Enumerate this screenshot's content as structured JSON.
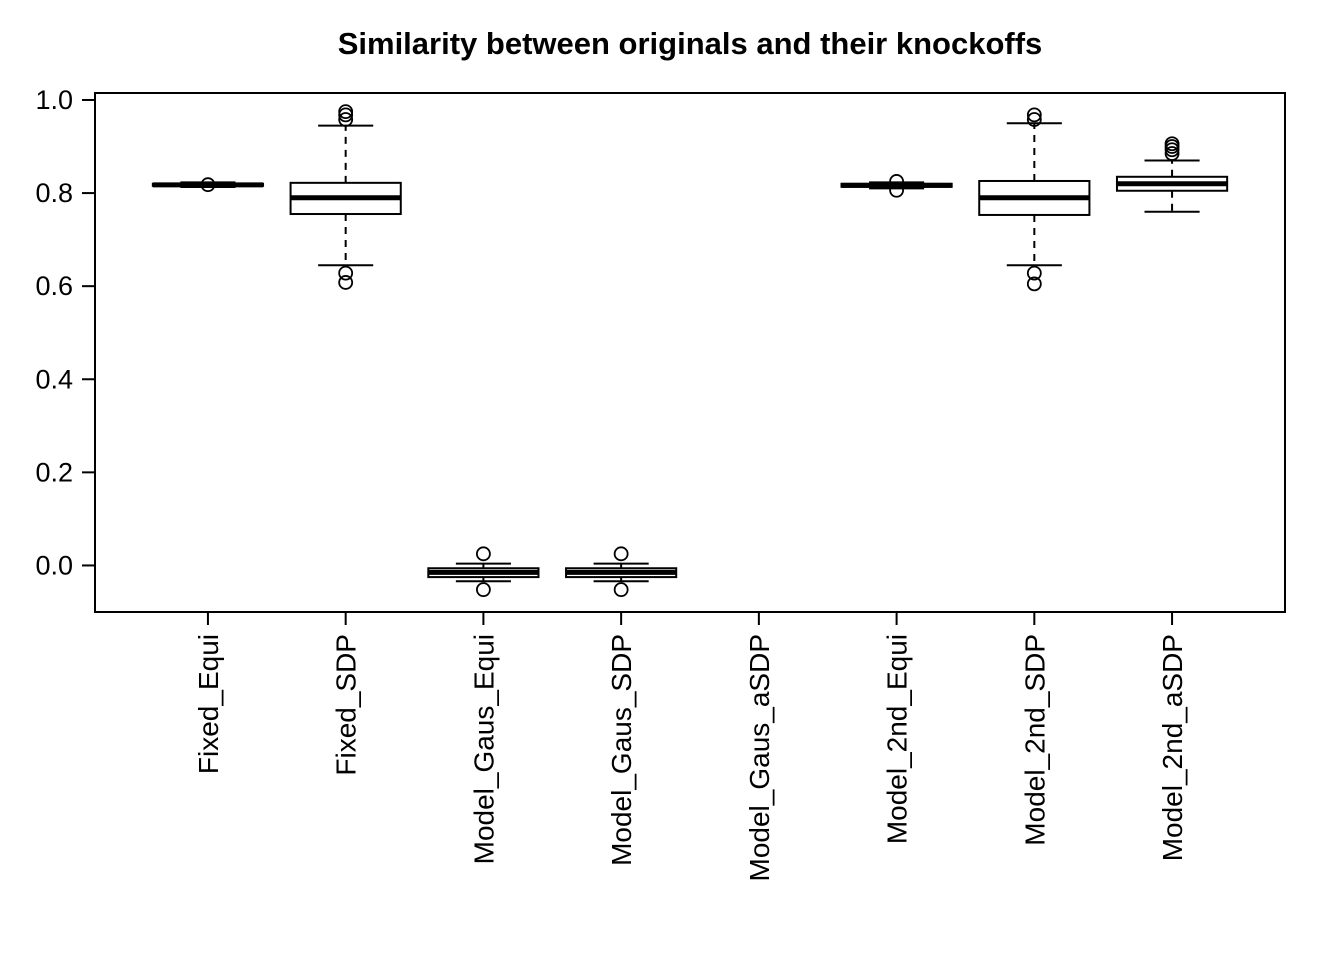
{
  "chart_data": {
    "type": "boxplot",
    "title": "Similarity between originals and their knockoffs",
    "xlabel": "",
    "ylabel": "",
    "ylim": [
      -0.1,
      1.015
    ],
    "yticks": [
      0.0,
      0.2,
      0.4,
      0.6,
      0.8,
      1.0
    ],
    "ytick_labels": [
      "0.0",
      "0.2",
      "0.4",
      "0.6",
      "0.8",
      "1.0"
    ],
    "grid": false,
    "legend": null,
    "categories": [
      "Fixed_Equi",
      "Fixed_SDP",
      "Model_Gaus_Equi",
      "Model_Gaus_SDP",
      "Model_Gaus_aSDP",
      "Model_2nd_Equi",
      "Model_2nd_SDP",
      "Model_2nd_aSDP"
    ],
    "boxes": [
      {
        "category": "Fixed_Equi",
        "whislo": 0.813,
        "q1": 0.8155,
        "med": 0.8175,
        "q3": 0.82,
        "whishi": 0.823,
        "outliers": [
          0.818
        ]
      },
      {
        "category": "Fixed_SDP",
        "whislo": 0.645,
        "q1": 0.755,
        "med": 0.79,
        "q3": 0.822,
        "whishi": 0.945,
        "outliers": [
          0.975,
          0.968,
          0.958,
          0.628,
          0.608
        ]
      },
      {
        "category": "Model_Gaus_Equi",
        "whislo": -0.034,
        "q1": -0.025,
        "med": -0.015,
        "q3": -0.006,
        "whishi": 0.004,
        "outliers": [
          0.025,
          -0.052
        ]
      },
      {
        "category": "Model_Gaus_SDP",
        "whislo": -0.034,
        "q1": -0.025,
        "med": -0.015,
        "q3": -0.006,
        "whishi": 0.004,
        "outliers": [
          0.025,
          -0.052
        ]
      },
      {
        "category": "Model_Gaus_aSDP",
        "whislo": null,
        "q1": null,
        "med": null,
        "q3": null,
        "whishi": null,
        "outliers": []
      },
      {
        "category": "Model_2nd_Equi",
        "whislo": 0.81,
        "q1": 0.8135,
        "med": 0.8165,
        "q3": 0.82,
        "whishi": 0.823,
        "outliers": [
          0.806,
          0.825
        ]
      },
      {
        "category": "Model_2nd_SDP",
        "whislo": 0.645,
        "q1": 0.753,
        "med": 0.79,
        "q3": 0.826,
        "whishi": 0.95,
        "outliers": [
          0.968,
          0.958,
          0.628,
          0.605
        ]
      },
      {
        "category": "Model_2nd_aSDP",
        "whislo": 0.76,
        "q1": 0.805,
        "med": 0.82,
        "q3": 0.835,
        "whishi": 0.87,
        "outliers": [
          0.885,
          0.893,
          0.9,
          0.906
        ]
      }
    ],
    "style": {
      "box_fill": "#ffffff",
      "stroke_color": "#000000",
      "background": "#ffffff"
    }
  }
}
